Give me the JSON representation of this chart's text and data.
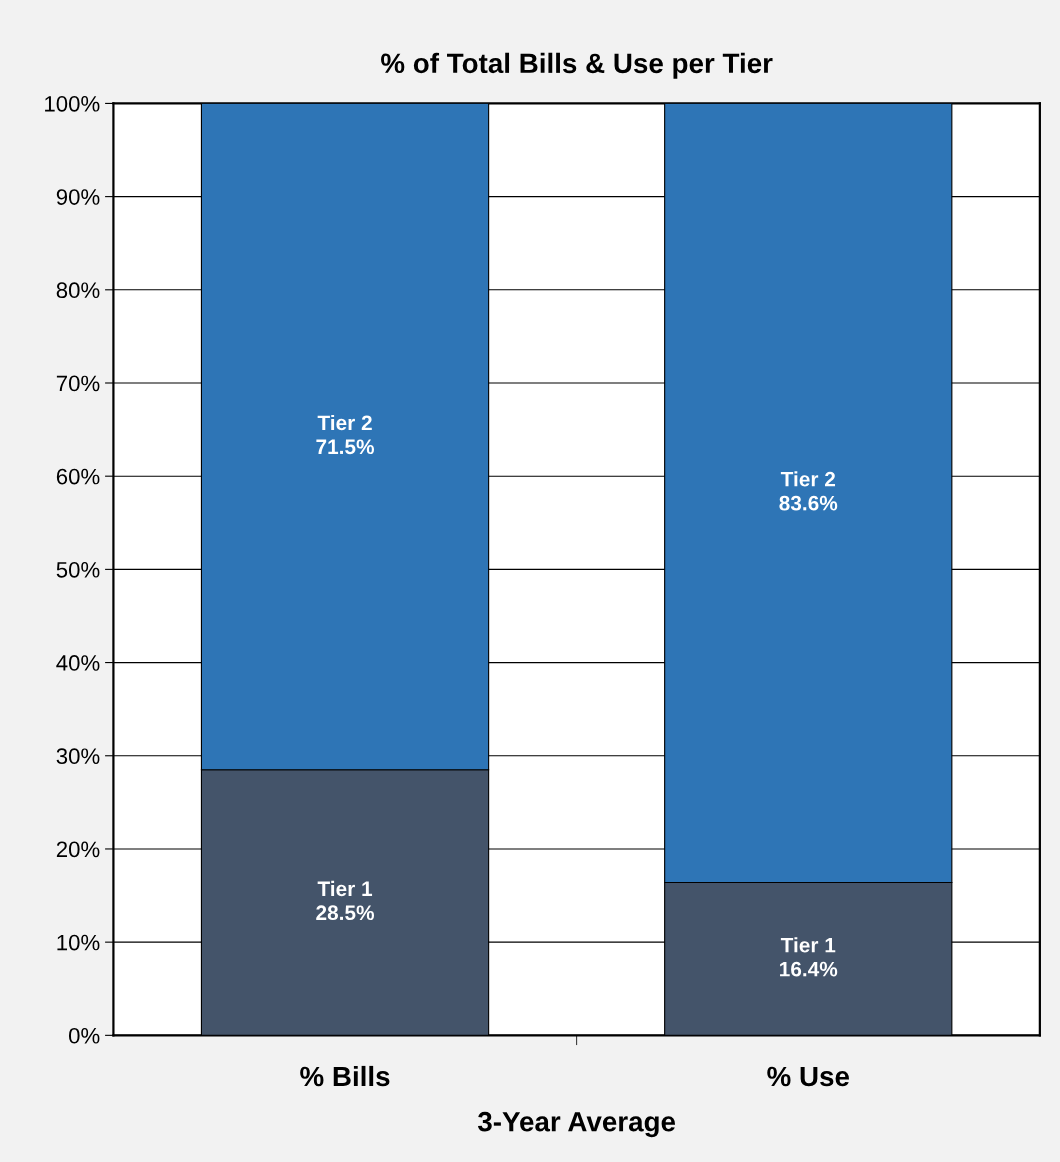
{
  "chart_data": {
    "type": "bar",
    "title": "% of Total Bills & Use per Tier",
    "xlabel": "3-Year Average",
    "categories": [
      "% Bills",
      "% Use"
    ],
    "stacked": true,
    "series": [
      {
        "name": "Tier 1",
        "color": "#44546a",
        "values": [
          28.5,
          16.4
        ],
        "value_labels": [
          "28.5%",
          "16.4%"
        ]
      },
      {
        "name": "Tier 2",
        "color": "#2e75b6",
        "values": [
          71.5,
          83.6
        ],
        "value_labels": [
          "71.5%",
          "83.6%"
        ]
      }
    ],
    "ylim": [
      0,
      100
    ],
    "yticks": [
      {
        "value": 0,
        "label": "0%"
      },
      {
        "value": 10,
        "label": "10%"
      },
      {
        "value": 20,
        "label": "20%"
      },
      {
        "value": 30,
        "label": "30%"
      },
      {
        "value": 40,
        "label": "40%"
      },
      {
        "value": 50,
        "label": "50%"
      },
      {
        "value": 60,
        "label": "60%"
      },
      {
        "value": 70,
        "label": "70%"
      },
      {
        "value": 80,
        "label": "80%"
      },
      {
        "value": 90,
        "label": "90%"
      },
      {
        "value": 100,
        "label": "100%"
      }
    ],
    "grid": "y",
    "legend": false
  }
}
